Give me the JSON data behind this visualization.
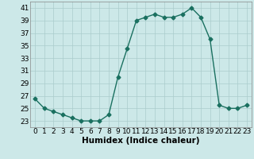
{
  "x": [
    0,
    1,
    2,
    3,
    4,
    5,
    6,
    7,
    8,
    9,
    10,
    11,
    12,
    13,
    14,
    15,
    16,
    17,
    18,
    19,
    20,
    21,
    22,
    23
  ],
  "y": [
    26.5,
    25.0,
    24.5,
    24.0,
    23.5,
    23.0,
    23.0,
    23.0,
    24.0,
    30.0,
    34.5,
    39.0,
    39.5,
    40.0,
    39.5,
    39.5,
    40.0,
    41.0,
    39.5,
    36.0,
    25.5,
    25.0,
    25.0,
    25.5
  ],
  "line_color": "#1a7060",
  "marker": "D",
  "markersize": 2.5,
  "bg_color": "#cce8e8",
  "grid_color": "#aacccc",
  "xlabel": "Humidex (Indice chaleur)",
  "ylim": [
    22,
    42
  ],
  "yticks": [
    23,
    25,
    27,
    29,
    31,
    33,
    35,
    37,
    39,
    41
  ],
  "xticks": [
    0,
    1,
    2,
    3,
    4,
    5,
    6,
    7,
    8,
    9,
    10,
    11,
    12,
    13,
    14,
    15,
    16,
    17,
    18,
    19,
    20,
    21,
    22,
    23
  ],
  "xlabel_fontsize": 7.5,
  "tick_fontsize": 6.5,
  "linewidth": 1.0
}
